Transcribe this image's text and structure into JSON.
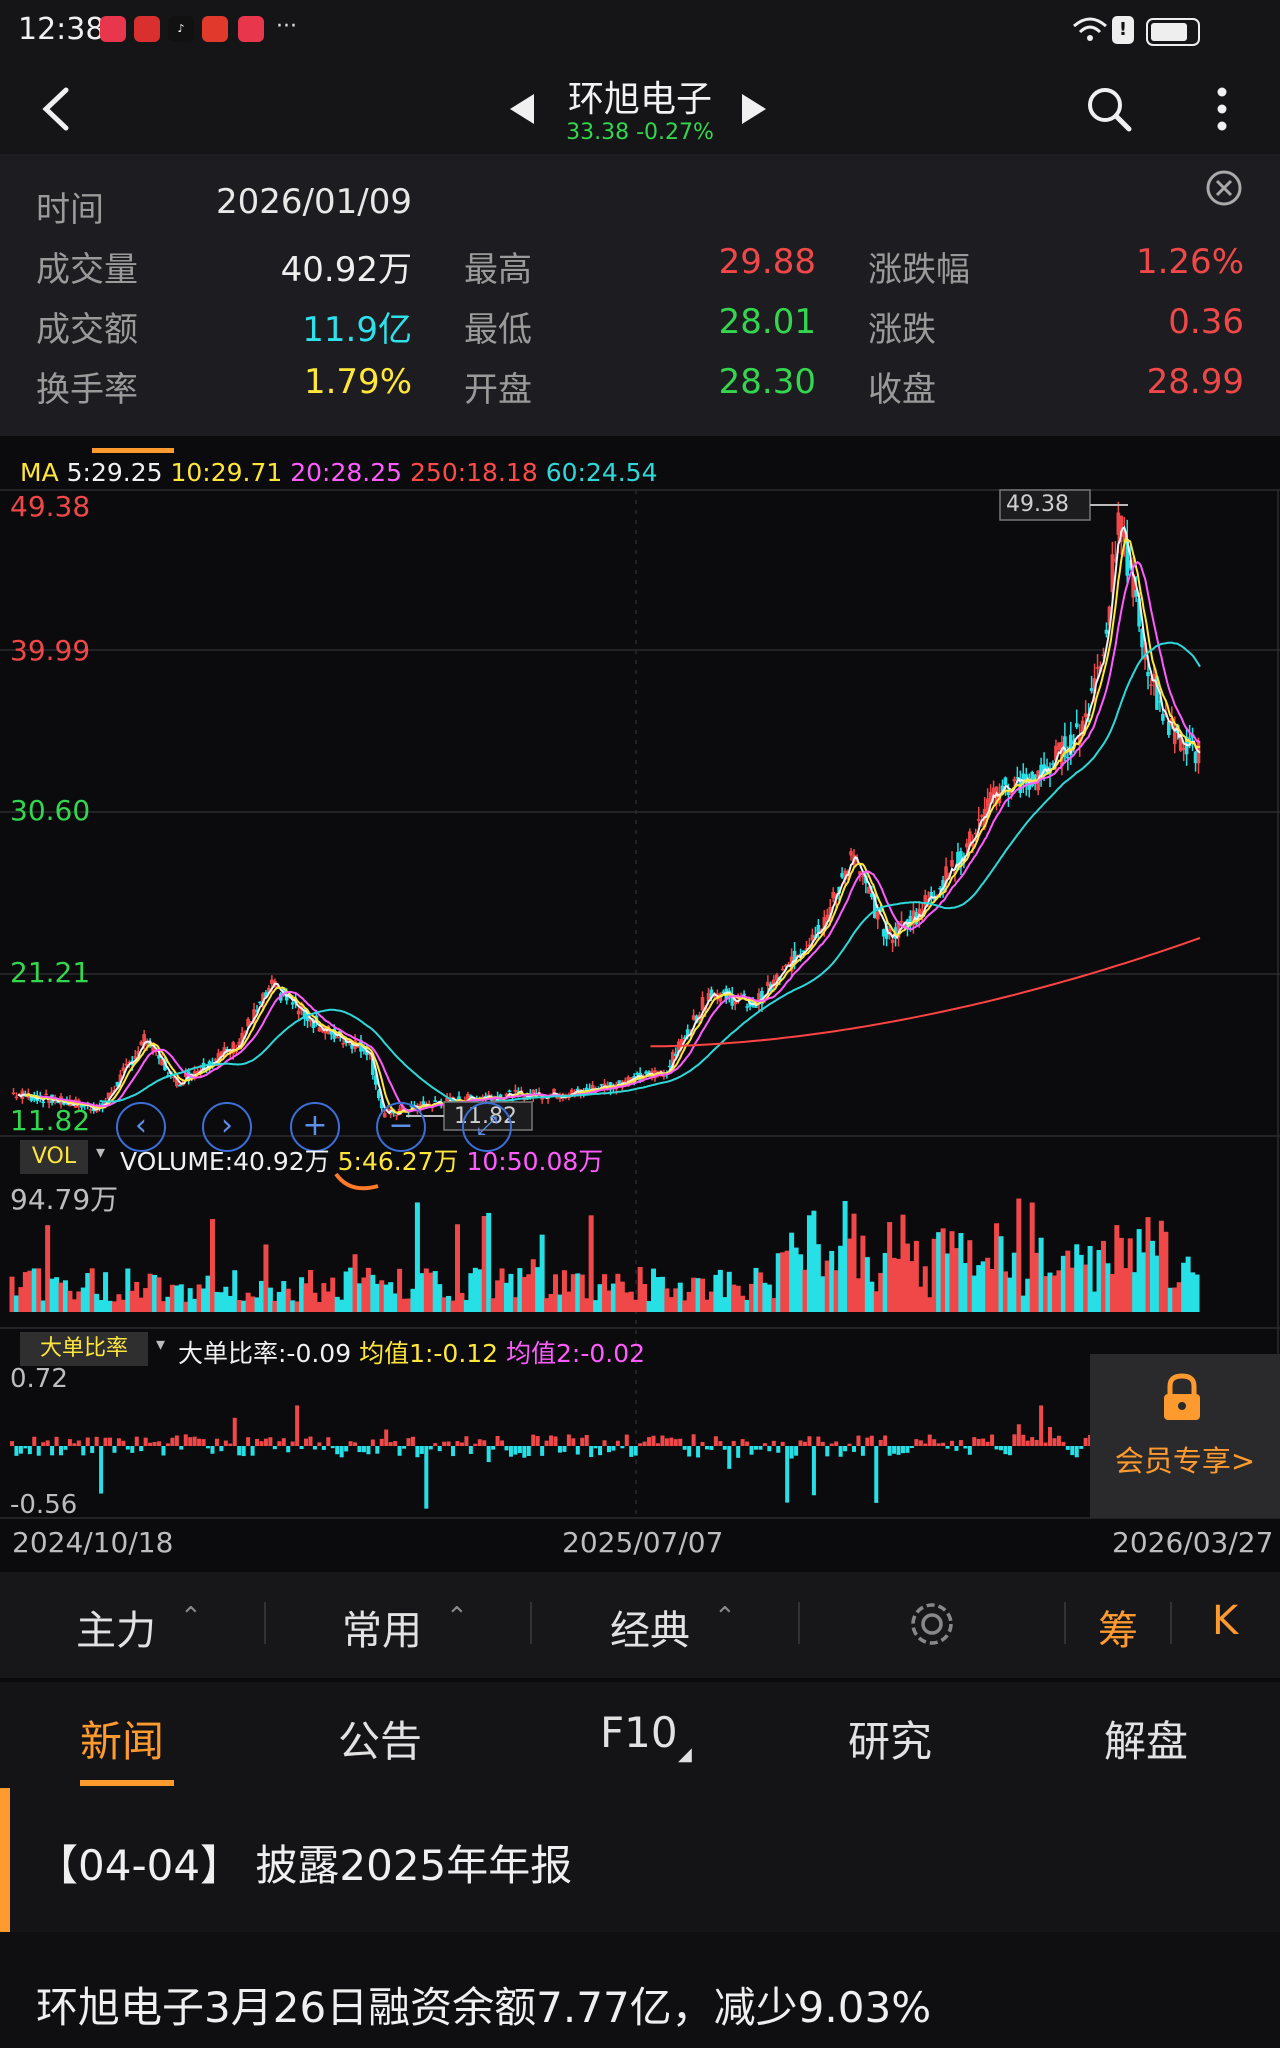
{
  "status": {
    "time": "12:38",
    "more": "···"
  },
  "header": {
    "title": "环旭电子",
    "price_change": "33.38 -0.27%"
  },
  "info": {
    "date_label": "时间",
    "date_value": "2026/01/09",
    "rows": [
      {
        "l1": "成交量",
        "v1": "40.92万",
        "l2": "最高",
        "v2": "29.88",
        "l3": "涨跌幅",
        "v3": "1.26%"
      },
      {
        "l1": "成交额",
        "v1": "11.9亿",
        "l2": "最低",
        "v2": "28.01",
        "l3": "涨跌",
        "v3": "0.36"
      },
      {
        "l1": "换手率",
        "v1": "1.79%",
        "l2": "开盘",
        "v2": "28.30",
        "l3": "收盘",
        "v3": "28.99"
      }
    ]
  },
  "ma_bar": {
    "prefix": "MA",
    "ma5": "5:29.25",
    "ma10": "10:29.71",
    "ma20": "20:28.25",
    "ma250": "250:18.18",
    "ma60": "60:24.54"
  },
  "price_axis": {
    "labels": [
      "49.38",
      "39.99",
      "30.60",
      "21.21",
      "11.82"
    ],
    "max_marker": "49.38",
    "min_marker": "11.82"
  },
  "volume_bar": {
    "tag": "VOL",
    "volume": "VOLUME:40.92万",
    "ma5": "5:46.27万",
    "ma10": "10:50.08万",
    "axis_max": "94.79万"
  },
  "ratio_bar": {
    "tag": "大单比率",
    "value": "大单比率:-0.09",
    "avg1": "均值1:-0.12",
    "avg2": "均值2:-0.02",
    "axis_max": "0.72",
    "axis_min": "-0.56"
  },
  "member": {
    "label": "会员专享>"
  },
  "dates": [
    "2024/10/18",
    "2025/07/07",
    "2026/03/27"
  ],
  "toolbar": {
    "main": "主力",
    "common": "常用",
    "classic": "经典",
    "chip": "筹",
    "k": "K"
  },
  "tabs": [
    "新闻",
    "公告",
    "F10",
    "研究",
    "解盘"
  ],
  "news": [
    {
      "text": "【04-04】 披露2025年年报"
    },
    {
      "text": "环旭电子3月26日融资余额7.77亿，减少9.03%"
    }
  ],
  "colors": {
    "up": "#f04848",
    "down": "#27e0e6",
    "ma5": "#f0f0f0",
    "ma10": "#ffe63b",
    "ma20": "#ff5cff",
    "ma60": "#2fd8d8",
    "ma250": "#ff4444",
    "accent": "#ff9a2e"
  },
  "icons": [
    "back-arrow-icon",
    "prev-triangle-icon",
    "next-triangle-icon",
    "search-icon",
    "more-vertical-icon",
    "close-circle-icon",
    "lock-icon",
    "gear-icon",
    "chevron-up-icon"
  ]
}
